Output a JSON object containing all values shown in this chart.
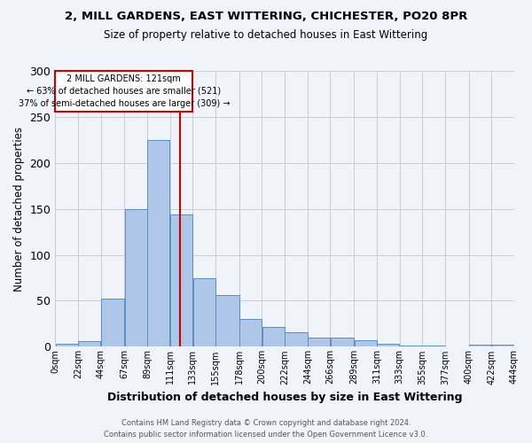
{
  "title1": "2, MILL GARDENS, EAST WITTERING, CHICHESTER, PO20 8PR",
  "title2": "Size of property relative to detached houses in East Wittering",
  "xlabel": "Distribution of detached houses by size in East Wittering",
  "ylabel": "Number of detached properties",
  "footer1": "Contains HM Land Registry data © Crown copyright and database right 2024.",
  "footer2": "Contains public sector information licensed under the Open Government Licence v3.0.",
  "annotation_line1": "2 MILL GARDENS: 121sqm",
  "annotation_line2": "← 63% of detached houses are smaller (521)",
  "annotation_line3": "37% of semi-detached houses are larger (309) →",
  "bar_left_edges": [
    0,
    22,
    44,
    67,
    89,
    111,
    133,
    155,
    178,
    200,
    222,
    244,
    266,
    289,
    311,
    333,
    355,
    377,
    400,
    422
  ],
  "bar_heights": [
    3,
    6,
    52,
    150,
    225,
    144,
    75,
    56,
    30,
    22,
    16,
    10,
    10,
    7,
    3,
    1,
    1,
    0,
    2,
    2
  ],
  "bar_widths": [
    22,
    22,
    23,
    22,
    22,
    22,
    22,
    23,
    22,
    22,
    22,
    22,
    23,
    22,
    22,
    22,
    22,
    23,
    22,
    22
  ],
  "bar_color": "#aec6e8",
  "bar_edgecolor": "#5a8fc2",
  "tick_labels": [
    "0sqm",
    "22sqm",
    "44sqm",
    "67sqm",
    "89sqm",
    "111sqm",
    "133sqm",
    "155sqm",
    "178sqm",
    "200sqm",
    "222sqm",
    "244sqm",
    "266sqm",
    "289sqm",
    "311sqm",
    "333sqm",
    "355sqm",
    "377sqm",
    "400sqm",
    "422sqm",
    "444sqm"
  ],
  "tick_positions": [
    0,
    22,
    44,
    67,
    89,
    111,
    133,
    155,
    178,
    200,
    222,
    244,
    266,
    289,
    311,
    333,
    355,
    377,
    400,
    422,
    444
  ],
  "red_line_x": 121,
  "ylim": [
    0,
    300
  ],
  "xlim": [
    0,
    444
  ],
  "grid_color": "#cccccc",
  "bg_color": "#f0f4fa",
  "red_color": "#cc0000",
  "yticks": [
    0,
    50,
    100,
    150,
    200,
    250,
    300
  ]
}
